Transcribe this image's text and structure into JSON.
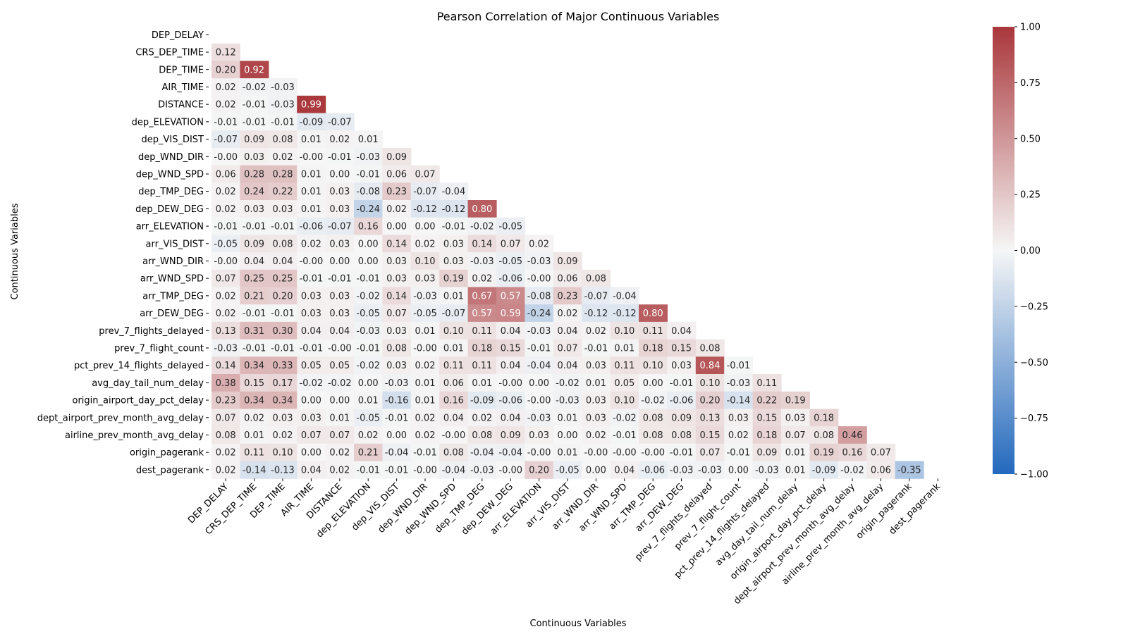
{
  "chart_data": {
    "type": "heatmap",
    "title": "Pearson Correlation of Major Continuous Variables",
    "xlabel": "Continuous Variables",
    "ylabel": "Continuous Variables",
    "mask": "upper-triangle-including-diagonal",
    "variables": [
      "DEP_DELAY",
      "CRS_DEP_TIME",
      "DEP_TIME",
      "AIR_TIME",
      "DISTANCE",
      "dep_ELEVATION",
      "dep_VIS_DIST",
      "dep_WND_DIR",
      "dep_WND_SPD",
      "dep_TMP_DEG",
      "dep_DEW_DEG",
      "arr_ELEVATION",
      "arr_VIS_DIST",
      "arr_WND_DIR",
      "arr_WND_SPD",
      "arr_TMP_DEG",
      "arr_DEW_DEG",
      "prev_7_flights_delayed",
      "prev_7_flight_count",
      "pct_prev_14_flights_delayed",
      "avg_day_tail_num_delay",
      "origin_airport_day_pct_delay",
      "dept_airport_prev_month_avg_delay",
      "airline_prev_month_avg_delay",
      "origin_pagerank",
      "dest_pagerank"
    ],
    "values": [
      [],
      [
        "0.12"
      ],
      [
        "0.20",
        "0.92"
      ],
      [
        "0.02",
        "-0.02",
        "-0.03"
      ],
      [
        "0.02",
        "-0.01",
        "-0.03",
        "0.99"
      ],
      [
        "-0.01",
        "-0.01",
        "-0.01",
        "-0.09",
        "-0.07"
      ],
      [
        "-0.07",
        "0.09",
        "0.08",
        "0.01",
        "0.02",
        "0.01"
      ],
      [
        "-0.00",
        "0.03",
        "0.02",
        "-0.00",
        "-0.01",
        "-0.03",
        "0.09"
      ],
      [
        "0.06",
        "0.28",
        "0.28",
        "0.01",
        "0.00",
        "-0.01",
        "0.06",
        "0.07"
      ],
      [
        "0.02",
        "0.24",
        "0.22",
        "0.01",
        "0.03",
        "-0.08",
        "0.23",
        "-0.07",
        "-0.04"
      ],
      [
        "0.02",
        "0.03",
        "0.03",
        "0.01",
        "0.03",
        "-0.24",
        "0.02",
        "-0.12",
        "-0.12",
        "0.80"
      ],
      [
        "-0.01",
        "-0.01",
        "-0.01",
        "-0.06",
        "-0.07",
        "0.16",
        "0.00",
        "0.00",
        "-0.01",
        "-0.02",
        "-0.05"
      ],
      [
        "-0.05",
        "0.09",
        "0.08",
        "0.02",
        "0.03",
        "0.00",
        "0.14",
        "0.02",
        "0.03",
        "0.14",
        "0.07",
        "0.02"
      ],
      [
        "-0.00",
        "0.04",
        "0.04",
        "-0.00",
        "0.00",
        "0.00",
        "0.03",
        "0.10",
        "0.03",
        "-0.03",
        "-0.05",
        "-0.03",
        "0.09"
      ],
      [
        "0.07",
        "0.25",
        "0.25",
        "-0.01",
        "-0.01",
        "-0.01",
        "0.03",
        "0.03",
        "0.19",
        "0.02",
        "-0.06",
        "-0.00",
        "0.06",
        "0.08"
      ],
      [
        "0.02",
        "0.21",
        "0.20",
        "0.03",
        "0.03",
        "-0.02",
        "0.14",
        "-0.03",
        "0.01",
        "0.67",
        "0.57",
        "-0.08",
        "0.23",
        "-0.07",
        "-0.04"
      ],
      [
        "0.02",
        "-0.01",
        "-0.01",
        "0.03",
        "0.03",
        "-0.05",
        "0.07",
        "-0.05",
        "-0.07",
        "0.57",
        "0.59",
        "-0.24",
        "0.02",
        "-0.12",
        "-0.12",
        "0.80"
      ],
      [
        "0.13",
        "0.31",
        "0.30",
        "0.04",
        "0.04",
        "-0.03",
        "0.03",
        "0.01",
        "0.10",
        "0.11",
        "0.04",
        "-0.03",
        "0.04",
        "0.02",
        "0.10",
        "0.11",
        "0.04"
      ],
      [
        "-0.03",
        "-0.01",
        "-0.01",
        "-0.01",
        "-0.00",
        "-0.01",
        "0.08",
        "-0.00",
        "0.01",
        "0.18",
        "0.15",
        "-0.01",
        "0.07",
        "-0.01",
        "0.01",
        "0.18",
        "0.15",
        "0.08"
      ],
      [
        "0.14",
        "0.34",
        "0.33",
        "0.05",
        "0.05",
        "-0.02",
        "0.03",
        "0.02",
        "0.11",
        "0.11",
        "0.04",
        "-0.04",
        "0.04",
        "0.03",
        "0.11",
        "0.10",
        "0.03",
        "0.84",
        "-0.01"
      ],
      [
        "0.38",
        "0.15",
        "0.17",
        "-0.02",
        "-0.02",
        "0.00",
        "-0.03",
        "0.01",
        "0.06",
        "0.01",
        "-0.00",
        "0.00",
        "-0.02",
        "0.01",
        "0.05",
        "0.00",
        "-0.01",
        "0.10",
        "-0.03",
        "0.11"
      ],
      [
        "0.23",
        "0.34",
        "0.34",
        "0.00",
        "0.00",
        "0.01",
        "-0.16",
        "0.01",
        "0.16",
        "-0.09",
        "-0.06",
        "-0.00",
        "-0.03",
        "0.03",
        "0.10",
        "-0.02",
        "-0.06",
        "0.20",
        "-0.14",
        "0.22",
        "0.19"
      ],
      [
        "0.07",
        "0.02",
        "0.03",
        "0.03",
        "0.01",
        "-0.05",
        "-0.01",
        "0.02",
        "0.04",
        "0.02",
        "0.04",
        "-0.03",
        "0.01",
        "0.03",
        "-0.02",
        "0.08",
        "0.09",
        "0.13",
        "0.03",
        "0.15",
        "0.03",
        "0.18"
      ],
      [
        "0.08",
        "0.01",
        "0.02",
        "0.07",
        "0.07",
        "0.02",
        "0.00",
        "0.02",
        "-0.00",
        "0.08",
        "0.09",
        "0.03",
        "0.00",
        "0.02",
        "-0.01",
        "0.08",
        "0.08",
        "0.15",
        "0.02",
        "0.18",
        "0.07",
        "0.08",
        "0.46"
      ],
      [
        "0.02",
        "0.11",
        "0.10",
        "0.00",
        "0.02",
        "0.21",
        "-0.04",
        "-0.01",
        "0.08",
        "-0.04",
        "-0.04",
        "-0.00",
        "0.01",
        "-0.00",
        "-0.00",
        "-0.00",
        "-0.01",
        "0.07",
        "-0.01",
        "0.09",
        "0.01",
        "0.19",
        "0.16",
        "0.07"
      ],
      [
        "0.02",
        "-0.14",
        "-0.13",
        "0.04",
        "0.02",
        "-0.01",
        "-0.01",
        "-0.00",
        "-0.04",
        "-0.03",
        "-0.00",
        "0.20",
        "-0.05",
        "0.00",
        "0.04",
        "-0.06",
        "-0.03",
        "-0.03",
        "0.00",
        "-0.03",
        "0.01",
        "-0.09",
        "-0.02",
        "0.06",
        "-0.35"
      ]
    ],
    "colorbar": {
      "range": [
        -1,
        1
      ],
      "ticks": [
        "1.00",
        "0.75",
        "0.50",
        "0.25",
        "0.00",
        "−0.25",
        "−0.50",
        "−0.75",
        "−1.00"
      ],
      "tick_values": [
        1,
        0.75,
        0.5,
        0.25,
        0,
        -0.25,
        -0.5,
        -0.75,
        -1
      ],
      "colormap": "vlag",
      "colors": {
        "low": "#2369bd",
        "mid": "#f6f6f6",
        "high": "#a9373b"
      }
    }
  }
}
